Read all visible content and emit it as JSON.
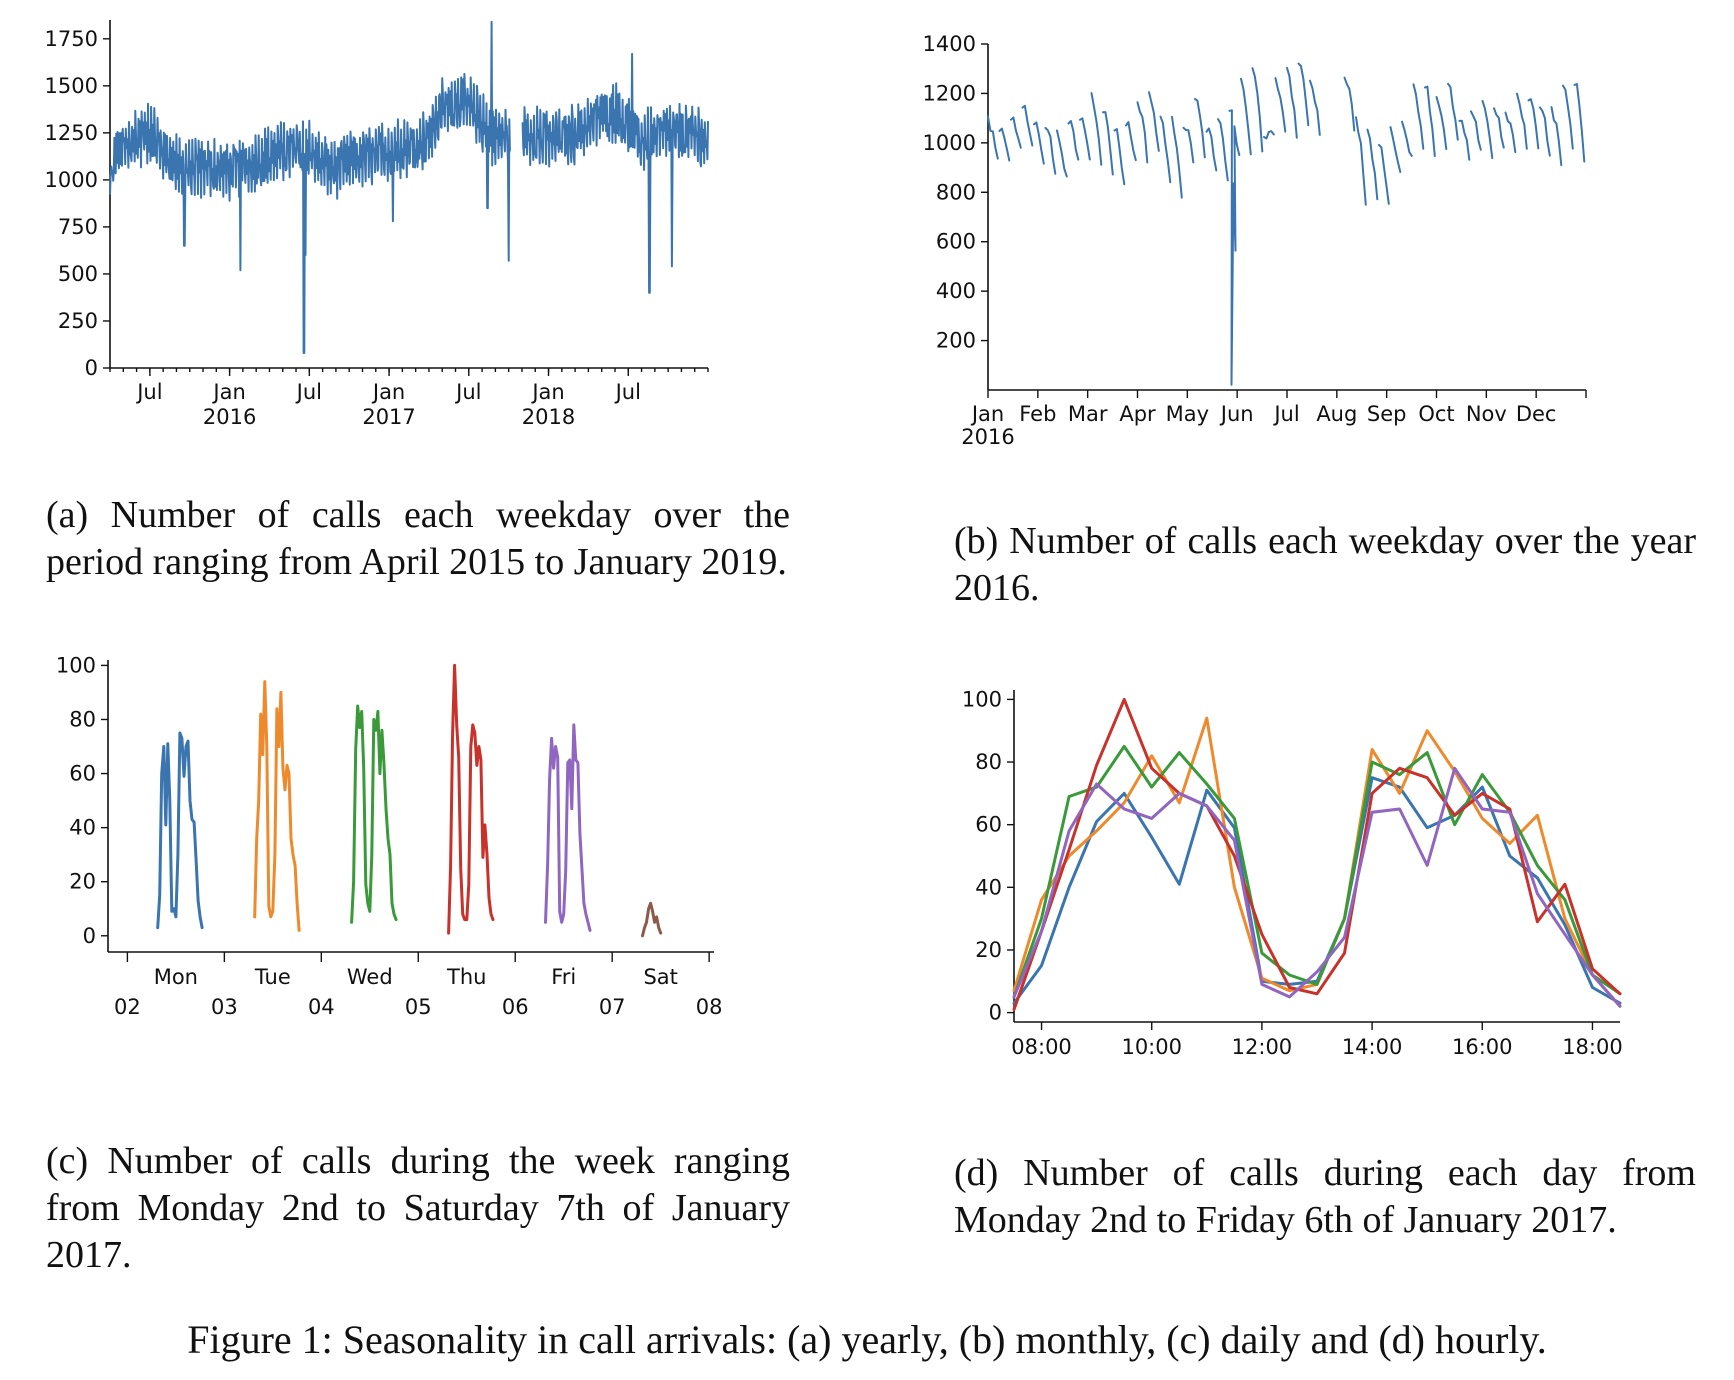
{
  "figure_caption": "Figure 1: Seasonality in call arrivals: (a) yearly, (b) monthly, (c) daily and (d) hourly.",
  "captions": {
    "a": "(a) Number of calls each weekday over the period ranging from April 2015 to January 2019.",
    "b": "(b) Number of calls each weekday over the year 2016.",
    "c": "(c) Number of calls during the week ranging from Monday 2nd to Saturday 7th of January 2017.",
    "d": "(d) Number of calls during each day from Monday 2nd to Friday 6th of January 2017."
  },
  "colors": {
    "blue": "#3a75b0",
    "orange": "#ef8a2c",
    "green": "#3a9a3a",
    "red": "#c8322b",
    "purple": "#9066c0",
    "brown": "#8c5a4b"
  },
  "chart_data": [
    {
      "id": "a",
      "type": "line",
      "title": "",
      "xlabel": "",
      "ylabel": "",
      "ylim": [
        0,
        1850
      ],
      "xlim": [
        "2015-04",
        "2019-01"
      ],
      "yticks": [
        0,
        250,
        500,
        750,
        1000,
        1250,
        1500,
        1750
      ],
      "xticks": [
        {
          "pos": 3,
          "label": "Jul",
          "sub": ""
        },
        {
          "pos": 9,
          "label": "Jan",
          "sub": "2016"
        },
        {
          "pos": 15,
          "label": "Jul",
          "sub": ""
        },
        {
          "pos": 21,
          "label": "Jan",
          "sub": "2017"
        },
        {
          "pos": 27,
          "label": "Jul",
          "sub": ""
        },
        {
          "pos": 33,
          "label": "Jan",
          "sub": "2018"
        },
        {
          "pos": 39,
          "label": "Jul",
          "sub": ""
        }
      ],
      "x_months": [
        0,
        1,
        2,
        3,
        4,
        5,
        6,
        7,
        8,
        9,
        10,
        11,
        12,
        13,
        14,
        15,
        16,
        17,
        18,
        19,
        20,
        21,
        22,
        23,
        24,
        25,
        26,
        27,
        28,
        29,
        30,
        31,
        32,
        33,
        34,
        35,
        36,
        37,
        38,
        39,
        40,
        41,
        42,
        43,
        44,
        45
      ],
      "series": [
        {
          "color": "#3a75b0",
          "monthly_level": [
            1100,
            1180,
            1220,
            1250,
            1150,
            1080,
            1050,
            1070,
            1060,
            1050,
            1080,
            1100,
            1120,
            1150,
            1170,
            1160,
            1080,
            1060,
            1100,
            1120,
            1140,
            1150,
            1170,
            1190,
            1230,
            1380,
            1420,
            1400,
            1300,
            1220,
            1250,
            1240,
            1230,
            1220,
            1230,
            1240,
            1300,
            1350,
            1360,
            1290,
            1200,
            1250,
            1260,
            1250,
            1240,
            1200
          ],
          "dips": [
            {
              "month": 5.6,
              "value": 650
            },
            {
              "month": 9.8,
              "value": 520
            },
            {
              "month": 14.6,
              "value": 80
            },
            {
              "month": 14.7,
              "value": 600
            },
            {
              "month": 21.3,
              "value": 780
            },
            {
              "month": 28.4,
              "value": 850
            },
            {
              "month": 30.0,
              "value": 570
            },
            {
              "month": 40.6,
              "value": 400
            },
            {
              "month": 42.3,
              "value": 540
            }
          ],
          "spikes": [
            {
              "month": 28.7,
              "value": 1840
            },
            {
              "month": 39.3,
              "value": 1670
            }
          ],
          "gap_months": [
            30.1,
            31.0
          ]
        }
      ]
    },
    {
      "id": "b",
      "type": "line",
      "title": "",
      "xlabel": "",
      "ylabel": "",
      "ylim": [
        80,
        1400
      ],
      "xlim": [
        "2016-01-01",
        "2016-12-31"
      ],
      "yticks": [
        200,
        400,
        600,
        800,
        1000,
        1200,
        1400
      ],
      "xticks": [
        {
          "pos": 0,
          "label": "Jan",
          "sub": "2016"
        },
        {
          "pos": 1,
          "label": "Feb",
          "sub": ""
        },
        {
          "pos": 2,
          "label": "Mar",
          "sub": ""
        },
        {
          "pos": 3,
          "label": "Apr",
          "sub": ""
        },
        {
          "pos": 4,
          "label": "May",
          "sub": ""
        },
        {
          "pos": 5,
          "label": "Jun",
          "sub": ""
        },
        {
          "pos": 6,
          "label": "Jul",
          "sub": ""
        },
        {
          "pos": 7,
          "label": "Aug",
          "sub": ""
        },
        {
          "pos": 8,
          "label": "Sep",
          "sub": ""
        },
        {
          "pos": 9,
          "label": "Oct",
          "sub": ""
        },
        {
          "pos": 10,
          "label": "Nov",
          "sub": ""
        },
        {
          "pos": 11,
          "label": "Dec",
          "sub": ""
        }
      ],
      "weekly_peaks": [
        1100,
        1080,
        1120,
        1160,
        1100,
        1090,
        1050,
        1100,
        1120,
        1200,
        1150,
        1080,
        1100,
        1180,
        1210,
        1120,
        1100,
        1090,
        1200,
        1080,
        1100,
        1150,
        1260,
        1300,
        1050,
        1250,
        1290,
        1320,
        1260,
        1200,
        1240,
        1280,
        1110,
        1050,
        1010,
        1060,
        1090,
        1230,
        1250,
        1200,
        1240,
        1100,
        1120,
        1180,
        1160,
        1130,
        1190,
        1200,
        1170,
        1140,
        1230,
        1260,
        1210,
        1180,
        1100
      ],
      "weekly_troughs": [
        950,
        960,
        980,
        1000,
        950,
        900,
        870,
        940,
        960,
        950,
        900,
        850,
        940,
        960,
        970,
        850,
        820,
        960,
        950,
        900,
        880,
        950,
        960,
        1000,
        1040,
        1080,
        1050,
        1100,
        1060,
        1050,
        1060,
        1080,
        780,
        800,
        790,
        900,
        950,
        1000,
        970,
        980,
        1020,
        960,
        1000,
        950,
        980,
        990,
        1000,
        1010,
        970,
        950,
        1000,
        960,
        1000,
        790,
        720
      ],
      "outage": {
        "week": 21.5,
        "value": 80,
        "recover": 600,
        "recover2": 860
      },
      "gap_weeks": [
        29.5,
        30.6
      ]
    },
    {
      "id": "c",
      "type": "line",
      "title": "",
      "xlabel": "",
      "ylabel": "",
      "ylim": [
        0,
        100
      ],
      "yticks": [
        0,
        20,
        40,
        60,
        80,
        100
      ],
      "xticks_minor": [
        {
          "pos": 2,
          "label": "02"
        },
        {
          "pos": 3,
          "label": "03"
        },
        {
          "pos": 4,
          "label": "04"
        },
        {
          "pos": 5,
          "label": "05"
        },
        {
          "pos": 6,
          "label": "06"
        },
        {
          "pos": 7,
          "label": "07"
        },
        {
          "pos": 8,
          "label": "08"
        }
      ],
      "day_labels": [
        "Mon",
        "Tue",
        "Wed",
        "Thu",
        "Fri",
        "Sat"
      ],
      "series": [
        {
          "name": "",
          "color": "#3a75b0",
          "day": 2,
          "hours": [
            7.5,
            8,
            8.5,
            9,
            9.5,
            10,
            10.5,
            11,
            11.5,
            12,
            12.5,
            13,
            13.5,
            14,
            14.5,
            15,
            15.5,
            16,
            16.5,
            17,
            17.5,
            18,
            18.5
          ],
          "values": [
            3,
            15,
            60,
            70,
            41,
            71,
            50,
            9,
            10,
            7,
            30,
            75,
            73,
            59,
            70,
            72,
            50,
            43,
            42,
            28,
            13,
            7,
            3
          ]
        },
        {
          "name": "",
          "color": "#ef8a2c",
          "day": 3,
          "hours": [
            7.5,
            8,
            8.5,
            9,
            9.5,
            10,
            10.5,
            11,
            11.5,
            12,
            12.5,
            13,
            13.5,
            14,
            14.5,
            15,
            15.5,
            16,
            16.5,
            17,
            17.5,
            18,
            18.5
          ],
          "values": [
            7,
            36,
            50,
            82,
            67,
            94,
            70,
            11,
            7,
            9,
            30,
            84,
            70,
            90,
            62,
            54,
            63,
            60,
            36,
            30,
            26,
            12,
            2
          ]
        },
        {
          "name": "",
          "color": "#3a9a3a",
          "day": 4,
          "hours": [
            7.5,
            8,
            8.5,
            9,
            9.5,
            10,
            10.5,
            11,
            11.5,
            12,
            12.5,
            13,
            13.5,
            14,
            14.5,
            15,
            15.5,
            16,
            16.5,
            17,
            17.5,
            18,
            18.5
          ],
          "values": [
            5,
            20,
            69,
            85,
            77,
            83,
            62,
            19,
            12,
            9,
            30,
            80,
            76,
            83,
            60,
            76,
            64,
            47,
            36,
            30,
            12,
            8,
            6
          ]
        },
        {
          "name": "",
          "color": "#c8322b",
          "day": 5,
          "hours": [
            7.5,
            8,
            8.5,
            9,
            9.5,
            10,
            10.5,
            11,
            11.5,
            12,
            12.5,
            13,
            13.5,
            14,
            14.5,
            15,
            15.5,
            16,
            16.5,
            17,
            17.5,
            18,
            18.5
          ],
          "values": [
            1,
            26,
            75,
            100,
            78,
            66,
            25,
            8,
            6,
            6,
            19,
            70,
            78,
            75,
            63,
            70,
            65,
            29,
            41,
            30,
            14,
            8,
            6
          ]
        },
        {
          "name": "",
          "color": "#9066c0",
          "day": 6,
          "hours": [
            7.5,
            8,
            8.5,
            9,
            9.5,
            10,
            10.5,
            11,
            11.5,
            12,
            12.5,
            13,
            13.5,
            14,
            14.5,
            15,
            15.5,
            16,
            16.5,
            17,
            17.5,
            18,
            18.5
          ],
          "values": [
            5,
            26,
            58,
            73,
            62,
            70,
            66,
            9,
            5,
            8,
            24,
            64,
            65,
            47,
            78,
            65,
            64,
            38,
            25,
            12,
            8,
            5,
            2
          ]
        },
        {
          "name": "",
          "color": "#8c5a4b",
          "day": 7,
          "hours": [
            7.5,
            8,
            8.5,
            9,
            9.5,
            10,
            10.5,
            11,
            11.5,
            12
          ],
          "values": [
            0,
            3,
            5,
            10,
            12,
            9,
            5,
            7,
            3,
            1
          ]
        }
      ]
    },
    {
      "id": "d",
      "type": "line",
      "title": "",
      "xlabel": "",
      "ylabel": "",
      "ylim": [
        0,
        100
      ],
      "xlim": [
        7.5,
        18.5
      ],
      "yticks": [
        0,
        20,
        40,
        60,
        80,
        100
      ],
      "xticks": [
        {
          "pos": 8,
          "label": "08:00"
        },
        {
          "pos": 10,
          "label": "10:00"
        },
        {
          "pos": 12,
          "label": "12:00"
        },
        {
          "pos": 14,
          "label": "14:00"
        },
        {
          "pos": 16,
          "label": "16:00"
        },
        {
          "pos": 18,
          "label": "18:00"
        }
      ],
      "x": [
        7.5,
        8,
        8.5,
        9,
        9.5,
        10,
        10.5,
        11,
        11.5,
        12,
        12.5,
        13,
        13.5,
        14,
        14.5,
        15,
        15.5,
        16,
        16.5,
        17,
        17.5,
        18,
        18.5
      ],
      "series": [
        {
          "name": "",
          "color": "#3a75b0",
          "values": [
            3,
            15,
            40,
            61,
            70,
            56,
            41,
            71,
            59,
            10,
            9,
            10,
            30,
            75,
            72,
            59,
            63,
            72,
            50,
            43,
            28,
            8,
            3
          ]
        },
        {
          "name": "",
          "color": "#ef8a2c",
          "values": [
            7,
            36,
            50,
            58,
            67,
            82,
            67,
            94,
            40,
            11,
            7,
            9,
            30,
            84,
            70,
            90,
            77,
            62,
            54,
            63,
            30,
            12,
            2
          ]
        },
        {
          "name": "",
          "color": "#3a9a3a",
          "values": [
            5,
            30,
            69,
            72,
            85,
            72,
            83,
            73,
            62,
            19,
            12,
            9,
            30,
            80,
            76,
            83,
            60,
            76,
            64,
            47,
            36,
            12,
            6
          ]
        },
        {
          "name": "",
          "color": "#c8322b",
          "values": [
            1,
            26,
            52,
            79,
            100,
            78,
            70,
            66,
            50,
            25,
            8,
            6,
            19,
            70,
            78,
            75,
            63,
            70,
            65,
            29,
            41,
            14,
            6
          ]
        },
        {
          "name": "",
          "color": "#9066c0",
          "values": [
            5,
            26,
            58,
            73,
            65,
            62,
            70,
            66,
            55,
            9,
            5,
            13,
            24,
            64,
            65,
            47,
            78,
            65,
            64,
            38,
            25,
            12,
            2
          ]
        }
      ]
    }
  ]
}
